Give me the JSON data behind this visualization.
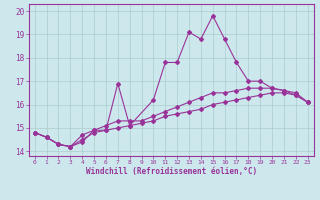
{
  "bg_color": "#cce8ec",
  "line_color": "#993399",
  "grid_color": "#aacccc",
  "xlabel": "Windchill (Refroidissement éolien,°C)",
  "xlabel_color": "#993399",
  "ylim": [
    13.8,
    20.3
  ],
  "xlim": [
    -0.5,
    23.5
  ],
  "yticks": [
    14,
    15,
    16,
    17,
    18,
    19,
    20
  ],
  "xticks": [
    0,
    1,
    2,
    3,
    4,
    5,
    6,
    7,
    8,
    9,
    10,
    11,
    12,
    13,
    14,
    15,
    16,
    17,
    18,
    19,
    20,
    21,
    22,
    23
  ],
  "series1_x": [
    0,
    1,
    2,
    3,
    4,
    5,
    6,
    7,
    8,
    9,
    10,
    11,
    12,
    13,
    14,
    15,
    16,
    17,
    18,
    19,
    20,
    21,
    22,
    23
  ],
  "series1_y": [
    14.8,
    14.6,
    14.3,
    14.2,
    14.4,
    14.9,
    14.9,
    16.9,
    15.1,
    null,
    16.2,
    17.8,
    17.8,
    19.1,
    18.8,
    19.8,
    18.8,
    17.8,
    17.0,
    17.0,
    16.7,
    16.6,
    16.4,
    16.1
  ],
  "series2_x": [
    0,
    1,
    2,
    3,
    4,
    5,
    6,
    7,
    8,
    9,
    10,
    11,
    12,
    13,
    14,
    15,
    16,
    17,
    18,
    19,
    20,
    21,
    22,
    23
  ],
  "series2_y": [
    14.8,
    14.6,
    14.3,
    14.2,
    14.7,
    14.9,
    15.1,
    15.3,
    15.3,
    15.3,
    15.5,
    15.7,
    15.9,
    16.1,
    16.3,
    16.5,
    16.5,
    16.6,
    16.7,
    16.7,
    16.7,
    16.6,
    16.5,
    16.1
  ],
  "series3_x": [
    0,
    1,
    2,
    3,
    4,
    5,
    6,
    7,
    8,
    9,
    10,
    11,
    12,
    13,
    14,
    15,
    16,
    17,
    18,
    19,
    20,
    21,
    22,
    23
  ],
  "series3_y": [
    14.8,
    14.6,
    14.3,
    14.2,
    14.5,
    14.8,
    14.9,
    15.0,
    15.1,
    15.2,
    15.3,
    15.5,
    15.6,
    15.7,
    15.8,
    16.0,
    16.1,
    16.2,
    16.3,
    16.4,
    16.5,
    16.5,
    16.4,
    16.1
  ]
}
